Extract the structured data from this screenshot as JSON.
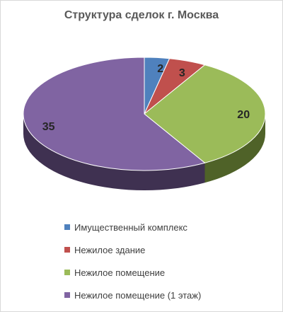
{
  "chart_data": {
    "type": "pie",
    "title": "Структура сделок г. Москва",
    "categories": [
      "Имущественный комплекс",
      "Нежилое здание",
      "Нежилое помещение",
      "Нежилое помещение (1 этаж)"
    ],
    "values": [
      2,
      3,
      20,
      35
    ],
    "colors": [
      "#4F81BD",
      "#C0504D",
      "#9BBB59",
      "#8064A2"
    ],
    "side_colors": [
      "#2C4D75",
      "#772C2A",
      "#4F6228",
      "#3F3151"
    ],
    "three_d": true,
    "legend_position": "bottom",
    "data_labels": true
  }
}
